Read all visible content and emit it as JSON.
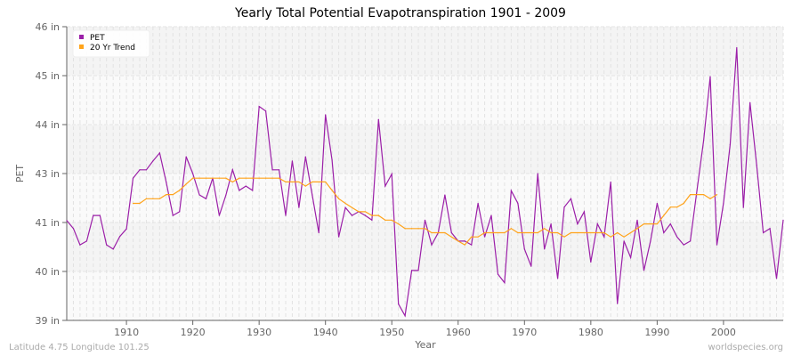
{
  "chart_data": {
    "type": "line",
    "title": "Yearly Total Potential Evapotranspiration 1901 - 2009",
    "xlabel": "Year",
    "ylabel": "PET",
    "xlim": [
      1901,
      2009
    ],
    "ylim": [
      39,
      46
    ],
    "x_ticks": [
      1910,
      1920,
      1930,
      1940,
      1950,
      1960,
      1970,
      1980,
      1990,
      2000
    ],
    "y_ticks": [
      {
        "value": 39,
        "label": "39 in"
      },
      {
        "value": 40.1667,
        "label": "40 in"
      },
      {
        "value": 41.3333,
        "label": "41 in"
      },
      {
        "value": 42.5,
        "label": "43 in"
      },
      {
        "value": 43.6667,
        "label": "44 in"
      },
      {
        "value": 44.8333,
        "label": "45 in"
      },
      {
        "value": 46,
        "label": "46 in"
      }
    ],
    "grid": true,
    "legend_position": "top-left",
    "series": [
      {
        "name": "PET",
        "color": "#9b1fa8",
        "x_start": 1901,
        "values": [
          41.38,
          41.19,
          40.8,
          40.89,
          41.5,
          41.5,
          40.8,
          40.7,
          41.0,
          41.18,
          42.39,
          42.59,
          42.59,
          42.8,
          42.99,
          42.29,
          41.5,
          41.59,
          42.9,
          42.5,
          41.99,
          41.9,
          42.39,
          41.5,
          41.99,
          42.59,
          42.1,
          42.2,
          42.1,
          44.1,
          43.99,
          42.59,
          42.59,
          41.5,
          42.8,
          41.69,
          42.9,
          41.99,
          41.09,
          43.9,
          42.82,
          40.99,
          41.69,
          41.5,
          41.59,
          41.5,
          41.39,
          43.79,
          42.2,
          42.49,
          39.39,
          39.11,
          40.19,
          40.19,
          41.39,
          40.8,
          41.09,
          41.99,
          41.09,
          40.89,
          40.89,
          40.8,
          41.79,
          40.99,
          41.5,
          40.1,
          39.9,
          42.09,
          41.79,
          40.7,
          40.29,
          42.5,
          40.7,
          41.3,
          40.0,
          41.7,
          41.9,
          41.3,
          41.59,
          40.39,
          41.3,
          40.99,
          42.3,
          39.4,
          40.89,
          40.5,
          41.39,
          40.19,
          40.89,
          41.79,
          41.09,
          41.3,
          40.99,
          40.8,
          40.89,
          42.1,
          43.29,
          44.81,
          40.8,
          41.79,
          43.19,
          45.5,
          41.69,
          44.19,
          42.7,
          41.09,
          41.19,
          40.0,
          41.39
        ]
      },
      {
        "name": "20 Yr Trend",
        "color": "#ffa31a",
        "x_start": 1911,
        "values": [
          41.79,
          41.79,
          41.9,
          41.9,
          41.9,
          42.0,
          42.0,
          42.1,
          42.25,
          42.39,
          42.39,
          42.39,
          42.39,
          42.39,
          42.39,
          42.3,
          42.39,
          42.39,
          42.39,
          42.39,
          42.39,
          42.39,
          42.39,
          42.3,
          42.3,
          42.3,
          42.2,
          42.3,
          42.3,
          42.3,
          42.1,
          41.9,
          41.79,
          41.69,
          41.59,
          41.59,
          41.5,
          41.5,
          41.39,
          41.39,
          41.3,
          41.19,
          41.19,
          41.19,
          41.19,
          41.09,
          41.09,
          41.09,
          40.99,
          40.89,
          40.8,
          40.99,
          40.99,
          41.09,
          41.09,
          41.09,
          41.09,
          41.19,
          41.09,
          41.09,
          41.09,
          41.09,
          41.19,
          41.09,
          41.09,
          40.99,
          41.09,
          41.09,
          41.09,
          41.09,
          41.09,
          41.09,
          40.99,
          41.09,
          40.99,
          41.09,
          41.19,
          41.3,
          41.3,
          41.3,
          41.5,
          41.7,
          41.7,
          41.79,
          42.0,
          42.0,
          42.0,
          41.9,
          42.0
        ]
      }
    ]
  },
  "footer": {
    "location": "Latitude 4.75 Longitude 101.25",
    "source": "worldspecies.org"
  }
}
